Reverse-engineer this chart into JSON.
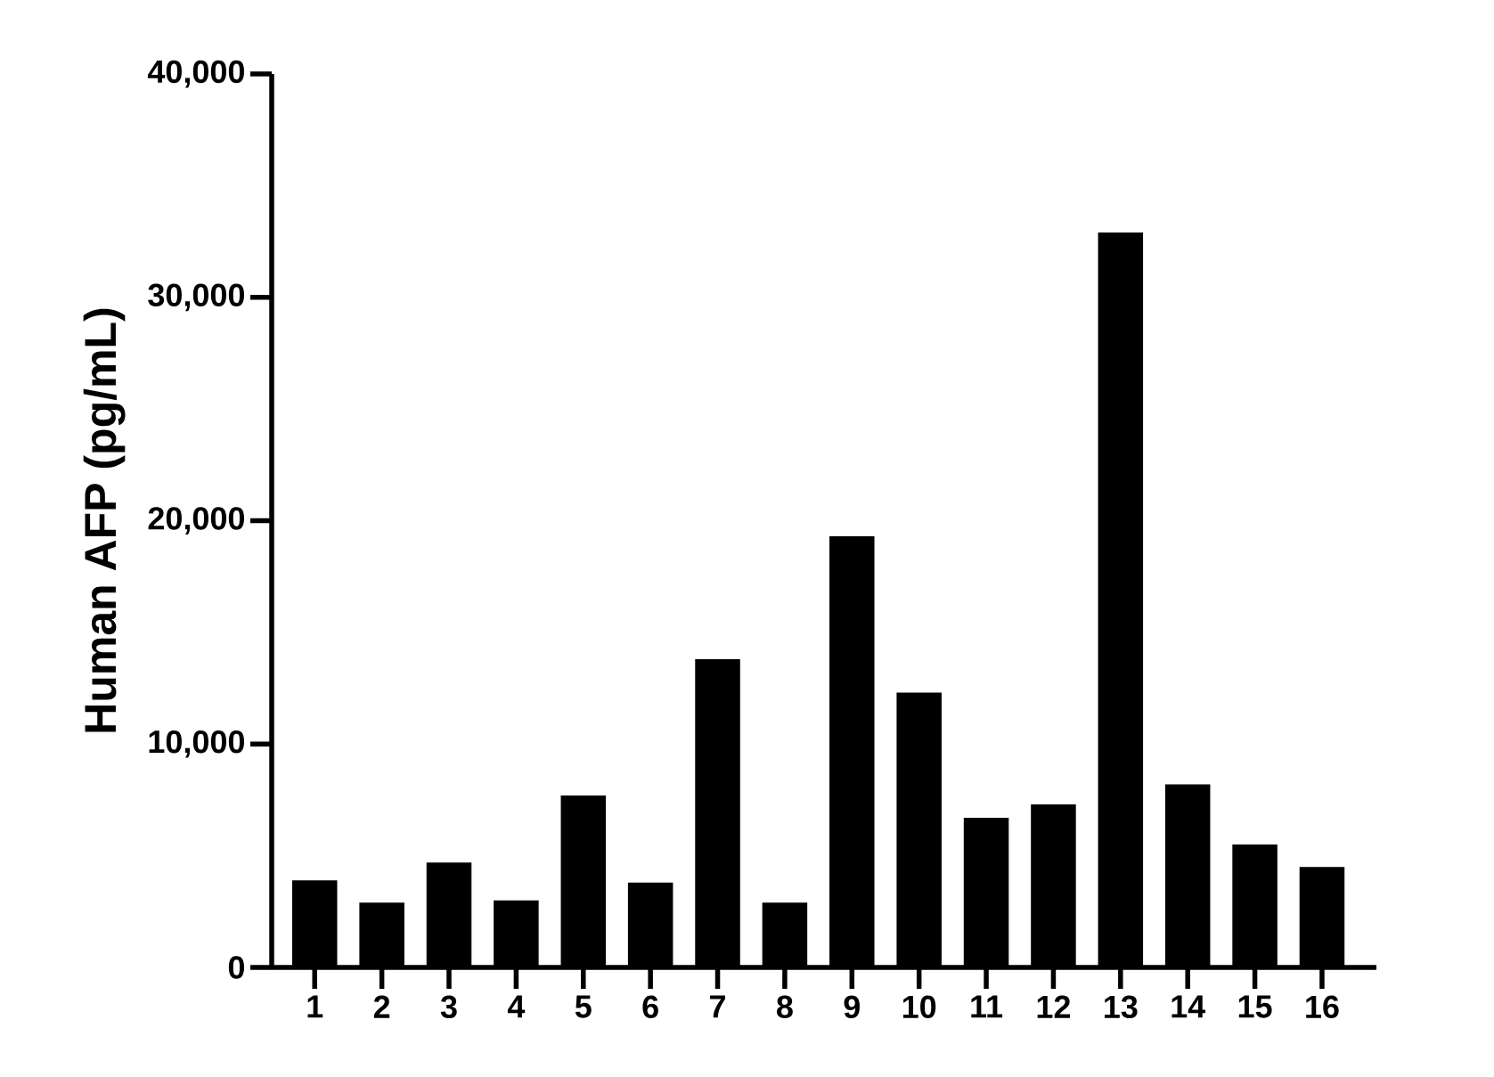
{
  "chart_data": {
    "type": "bar",
    "ylabel": "Human AFP (pg/mL)",
    "categories": [
      "1",
      "2",
      "3",
      "4",
      "5",
      "6",
      "7",
      "8",
      "9",
      "10",
      "11",
      "12",
      "13",
      "14",
      "15",
      "16"
    ],
    "values": [
      3900,
      2900,
      4700,
      3000,
      7700,
      3800,
      13800,
      2900,
      19300,
      12300,
      6700,
      7300,
      32900,
      8200,
      5500,
      4500
    ],
    "color": "#000000",
    "ylim": [
      0,
      40000
    ],
    "yticks": [
      {
        "value": 0,
        "label": "0"
      },
      {
        "value": 10000,
        "label": "10,000"
      },
      {
        "value": 20000,
        "label": "20,000"
      },
      {
        "value": 30000,
        "label": "30,000"
      },
      {
        "value": 40000,
        "label": "40,000"
      }
    ]
  }
}
